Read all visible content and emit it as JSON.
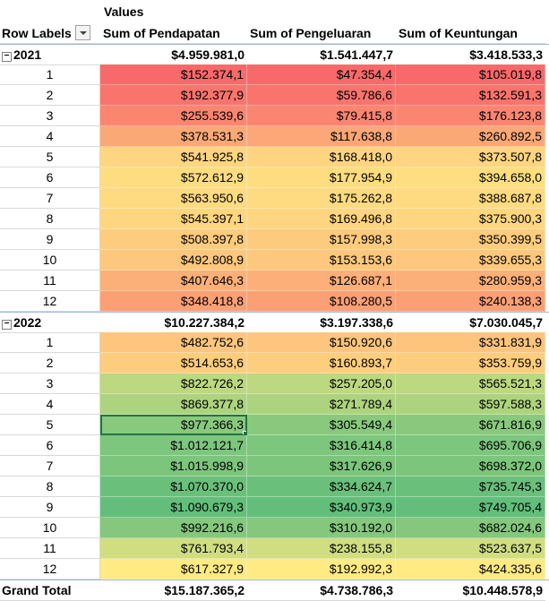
{
  "pivot": {
    "values_label": "Values",
    "row_labels": "Row Labels",
    "columns": [
      "Sum of Pendapatan",
      "Sum of Pengeluaran",
      "Sum of Keuntungan"
    ],
    "groups": [
      {
        "year": "2021",
        "totals": [
          "$4.959.981,0",
          "$1.541.447,7",
          "$3.418.533,3"
        ],
        "rows": [
          {
            "m": "1",
            "v": [
              "$152.374,1",
              "$47.354,4",
              "$105.019,8"
            ]
          },
          {
            "m": "2",
            "v": [
              "$192.377,9",
              "$59.786,6",
              "$132.591,3"
            ]
          },
          {
            "m": "3",
            "v": [
              "$255.539,6",
              "$79.415,8",
              "$176.123,8"
            ]
          },
          {
            "m": "4",
            "v": [
              "$378.531,3",
              "$117.638,8",
              "$260.892,5"
            ]
          },
          {
            "m": "5",
            "v": [
              "$541.925,8",
              "$168.418,0",
              "$373.507,8"
            ]
          },
          {
            "m": "6",
            "v": [
              "$572.612,9",
              "$177.954,9",
              "$394.658,0"
            ]
          },
          {
            "m": "7",
            "v": [
              "$563.950,6",
              "$175.262,8",
              "$388.687,8"
            ]
          },
          {
            "m": "8",
            "v": [
              "$545.397,1",
              "$169.496,8",
              "$375.900,3"
            ]
          },
          {
            "m": "9",
            "v": [
              "$508.397,8",
              "$157.998,3",
              "$350.399,5"
            ]
          },
          {
            "m": "10",
            "v": [
              "$492.808,9",
              "$153.153,6",
              "$339.655,3"
            ]
          },
          {
            "m": "11",
            "v": [
              "$407.646,3",
              "$126.687,1",
              "$280.959,3"
            ]
          },
          {
            "m": "12",
            "v": [
              "$348.418,8",
              "$108.280,5",
              "$240.138,3"
            ]
          }
        ]
      },
      {
        "year": "2022",
        "totals": [
          "$10.227.384,2",
          "$3.197.338,6",
          "$7.030.045,7"
        ],
        "rows": [
          {
            "m": "1",
            "v": [
              "$482.752,6",
              "$150.920,6",
              "$331.831,9"
            ]
          },
          {
            "m": "2",
            "v": [
              "$514.653,6",
              "$160.893,7",
              "$353.759,9"
            ]
          },
          {
            "m": "3",
            "v": [
              "$822.726,2",
              "$257.205,0",
              "$565.521,3"
            ]
          },
          {
            "m": "4",
            "v": [
              "$869.377,8",
              "$271.789,4",
              "$597.588,3"
            ]
          },
          {
            "m": "5",
            "v": [
              "$977.366,3",
              "$305.549,4",
              "$671.816,9"
            ]
          },
          {
            "m": "6",
            "v": [
              "$1.012.121,7",
              "$316.414,8",
              "$695.706,9"
            ]
          },
          {
            "m": "7",
            "v": [
              "$1.015.998,9",
              "$317.626,9",
              "$698.372,0"
            ]
          },
          {
            "m": "8",
            "v": [
              "$1.070.370,0",
              "$334.624,7",
              "$735.745,3"
            ]
          },
          {
            "m": "9",
            "v": [
              "$1.090.679,3",
              "$340.973,9",
              "$749.705,4"
            ]
          },
          {
            "m": "10",
            "v": [
              "$992.216,6",
              "$310.192,0",
              "$682.024,6"
            ]
          },
          {
            "m": "11",
            "v": [
              "$761.793,4",
              "$238.155,8",
              "$523.637,5"
            ]
          },
          {
            "m": "12",
            "v": [
              "$617.327,9",
              "$192.992,3",
              "$424.335,6"
            ]
          }
        ]
      }
    ],
    "grand_total": {
      "label": "Grand Total",
      "values": [
        "$15.187.365,2",
        "$4.738.786,3",
        "$10.448.578,9"
      ]
    },
    "selected_cell": "2022 / 5 / Sum of Pendapatan",
    "color_scales": {
      "Pendapatan": "low = yellow/orange, high = green",
      "Pengeluaran": "low = red, high = green",
      "Keuntungan": "low = orange, high = green"
    },
    "colors": {
      "selection_border": "#217346",
      "low_red": "#f8696b",
      "mid_yellow": "#ffeb84",
      "high_green": "#63be7b"
    },
    "icons": {
      "expander": "collapse-minus-icon",
      "filter": "dropdown-filter-icon"
    }
  }
}
